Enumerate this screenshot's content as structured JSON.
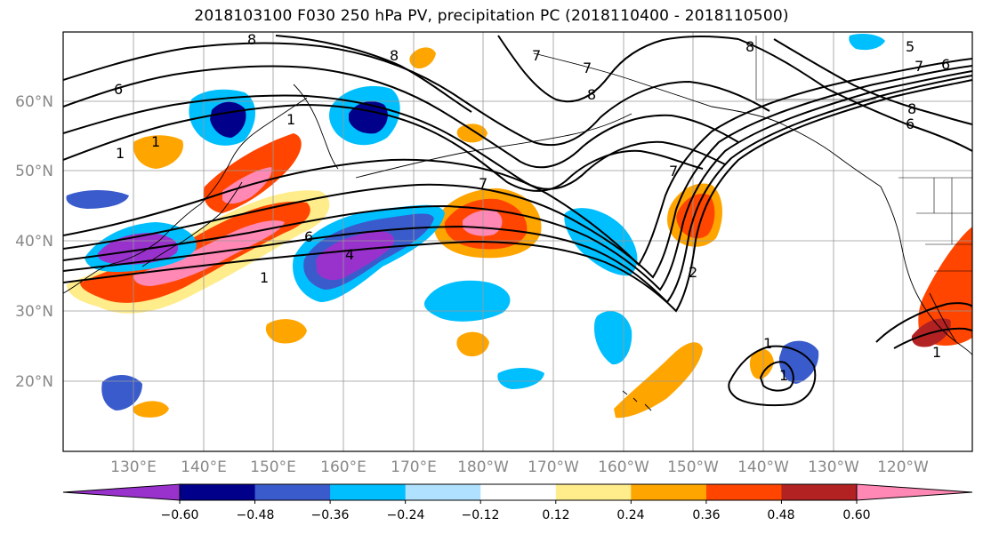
{
  "title": "2018103100 F030 250 hPa PV, precipitation PC (2018110400 - 2018110500)",
  "lat_labels": [
    "60°N",
    "50°N",
    "40°N",
    "30°N",
    "20°N"
  ],
  "lon_labels": [
    "130°E",
    "140°E",
    "150°E",
    "160°E",
    "170°E",
    "180°W",
    "170°W",
    "160°W",
    "150°W",
    "140°W",
    "130°W",
    "120°W"
  ],
  "colorbar": {
    "colors": [
      "#9932CC",
      "#00008B",
      "#3A5BCB",
      "#00BFFF",
      "#B0E2FF",
      "#FFFFFF",
      "#FFEC8B",
      "#FFA500",
      "#FF4500",
      "#B22222",
      "#FF88B4"
    ],
    "tick_labels": [
      "−0.60",
      "−0.48",
      "−0.36",
      "−0.24",
      "−0.12",
      "0.12",
      "0.24",
      "0.36",
      "0.48",
      "0.60"
    ]
  },
  "contour_labels": [
    "8",
    "8",
    "8",
    "7",
    "6",
    "1",
    "1",
    "7",
    "1",
    "7",
    "6",
    "4",
    "1",
    "7",
    "2",
    "8",
    "6",
    "5",
    "7",
    "6",
    "8",
    "1",
    "1",
    "1"
  ]
}
